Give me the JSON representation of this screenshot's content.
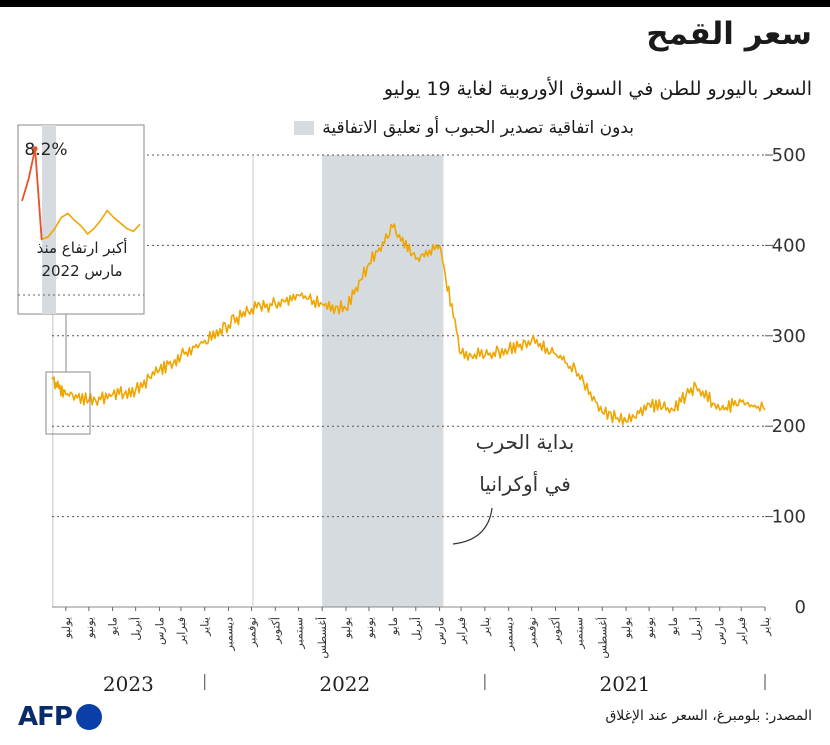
{
  "header": {
    "title": "سعر القمح",
    "subtitle": "السعر باليورو للطن في السوق الأوروبية لغاية 19 يوليو"
  },
  "legend": {
    "label": "بدون اتفاقية تصدير الحبوب أو تعليق الاتفاقية"
  },
  "annotations": {
    "war_line1": "بداية الحرب",
    "war_line2": "في أوكرانيا",
    "inset_pct": "8.2%",
    "inset_line1": "أكبر ارتفاع منذ",
    "inset_line2": "مارس 2022"
  },
  "footer": {
    "source": "المصدر: بلومبرغ، السعر عند الإغلاق",
    "logo": "AFP"
  },
  "colors": {
    "line": "#f0a500",
    "spike": "#e8542a",
    "shade": "#d6dbe0"
  },
  "chart_data": {
    "type": "line",
    "title": "سعر القمح",
    "subtitle": "السعر باليورو للطن في السوق الأوروبية لغاية 19 يوليو",
    "x_axis": "months, 2021-01 to 2023-07, right-to-left",
    "ylim": [
      0,
      500
    ],
    "y_ticks": [
      0,
      100,
      200,
      300,
      400,
      500
    ],
    "grid": true,
    "shaded_periods": [
      {
        "from": "2022-02-24",
        "to": "2022-08-01"
      },
      {
        "from": "2023-07-17",
        "to": "2023-07-19"
      }
    ],
    "month_labels": [
      "يناير",
      "فبراير",
      "مارس",
      "أبريل",
      "مايو",
      "يونيو",
      "يوليو",
      "أغسطس",
      "سبتمبر",
      "أكتوبر",
      "نوفمبر",
      "ديسمبر",
      "يناير",
      "فبراير",
      "مارس",
      "أبريل",
      "مايو",
      "يونيو",
      "يوليو",
      "أغسطس",
      "سبتمبر",
      "أكتوبر",
      "نوفمبر",
      "ديسمبر",
      "يناير",
      "فبراير",
      "مارس",
      "أبريل",
      "مايو",
      "يونيو",
      "يوليو"
    ],
    "years": [
      {
        "label": "2021",
        "months": 12
      },
      {
        "label": "2022",
        "months": 12
      },
      {
        "label": "2023",
        "months": 7
      }
    ],
    "series": [
      {
        "x": [
          "2021-01",
          "2021-02",
          "2021-03",
          "2021-04",
          "2021-05",
          "2021-06",
          "2021-07",
          "2021-08",
          "2021-09",
          "2021-10",
          "2021-11",
          "2021-12",
          "2022-01",
          "2022-02",
          "2022-03",
          "2022-04",
          "2022-05",
          "2022-06",
          "2022-07",
          "2022-08",
          "2022-09",
          "2022-10",
          "2022-11",
          "2022-12",
          "2023-01",
          "2023-02",
          "2023-03",
          "2023-04",
          "2023-05",
          "2023-06",
          "2023-07"
        ],
        "values": [
          218,
          227,
          218,
          245,
          218,
          225,
          205,
          215,
          258,
          280,
          295,
          285,
          278,
          280,
          400,
          385,
          420,
          380,
          330,
          335,
          345,
          335,
          330,
          312,
          295,
          278,
          262,
          240,
          235,
          228,
          235
        ]
      }
    ],
    "inset": {
      "period": "2023-07-01 to 2023-07-19",
      "values": [
        235,
        230,
        232,
        236,
        240,
        245,
        238,
        232,
        228,
        234,
        238,
        243,
        240,
        232,
        226,
        224,
        290,
        268,
        252
      ],
      "spike_pct": "8.2%"
    }
  }
}
